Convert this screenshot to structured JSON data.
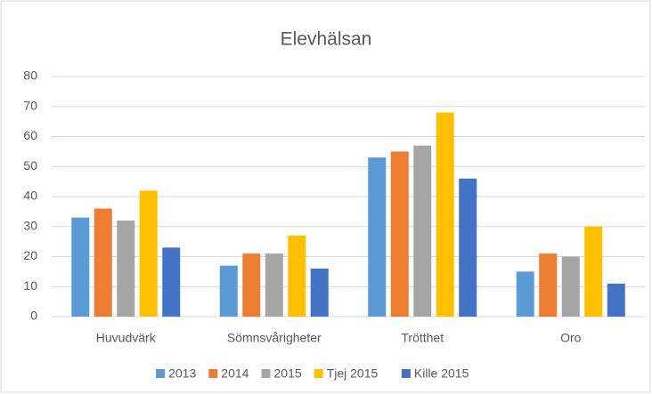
{
  "chart_data": {
    "type": "bar",
    "title": "Elevhälsan",
    "categories": [
      "Huvudvärk",
      "Sömnsvårigheter",
      "Trötthet",
      "Oro"
    ],
    "series": [
      {
        "name": "2013",
        "color": "#5b9bd5",
        "values": [
          33,
          17,
          53,
          15
        ]
      },
      {
        "name": "2014",
        "color": "#ed7d31",
        "values": [
          36,
          21,
          55,
          21
        ]
      },
      {
        "name": "2015",
        "color": "#a5a5a5",
        "values": [
          32,
          21,
          57,
          20
        ]
      },
      {
        "name": "Tjej 2015",
        "color": "#ffc000",
        "values": [
          42,
          27,
          68,
          30
        ]
      },
      {
        "name": "Kille 2015",
        "color": "#4472c4",
        "values": [
          23,
          16,
          46,
          11
        ]
      }
    ],
    "ylim": [
      0,
      80
    ],
    "yticks": [
      0,
      10,
      20,
      30,
      40,
      50,
      60,
      70,
      80
    ],
    "grid": true,
    "legend": "bottom"
  }
}
